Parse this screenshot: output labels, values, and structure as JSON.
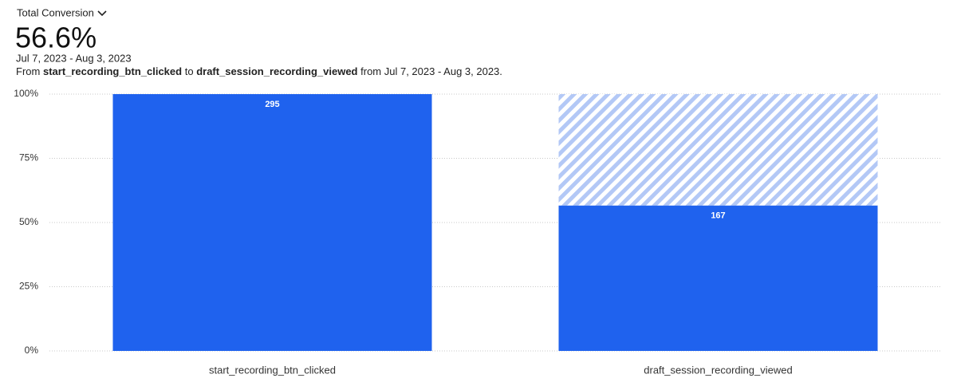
{
  "header": {
    "selector": "Total Conversion",
    "headline": "56.6%",
    "date_range": "Jul 7, 2023 - Aug 3, 2023",
    "description": {
      "prefix": "From",
      "from_event": "start_recording_btn_clicked",
      "joiner": "to",
      "to_event": "draft_session_recording_viewed",
      "suffix": "from Jul 7, 2023 - Aug 3, 2023."
    }
  },
  "chart_data": {
    "type": "funnel",
    "categories": [
      "start_recording_btn_clicked",
      "draft_session_recording_viewed"
    ],
    "values": [
      100,
      56.6
    ],
    "counts": [
      295,
      167
    ],
    "color": "#1f62ee",
    "dropoff_color": "#b3c8f6",
    "ylim": [
      0,
      100
    ],
    "yticks": [
      {
        "value": 0,
        "label": "0%"
      },
      {
        "value": 25,
        "label": "25%"
      },
      {
        "value": 50,
        "label": "50%"
      },
      {
        "value": 75,
        "label": "75%"
      },
      {
        "value": 100,
        "label": "100%"
      }
    ],
    "grid": true
  }
}
